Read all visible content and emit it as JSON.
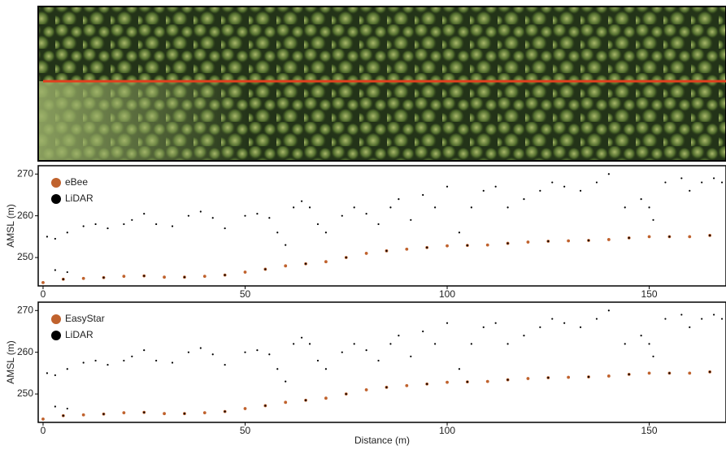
{
  "chart_data": [
    {
      "type": "scatter",
      "ylabel": "AMSL (m)",
      "xlim": [
        -1.2,
        169
      ],
      "ylim": [
        243.2,
        272
      ],
      "xticks": [
        0,
        50,
        100,
        150
      ],
      "yticks": [
        250,
        260,
        270
      ],
      "series": [
        {
          "name": "eBee",
          "color": "#c0622d",
          "x": [
            0,
            5,
            10,
            15,
            20,
            25,
            30,
            35,
            40,
            45,
            50,
            55,
            60,
            65,
            70,
            75,
            80,
            85,
            90,
            95,
            100,
            105,
            110,
            115,
            120,
            125,
            130,
            135,
            140,
            145,
            150,
            155,
            160,
            165
          ],
          "values": [
            244,
            244.8,
            245,
            245.2,
            245.5,
            245.6,
            245.3,
            245.3,
            245.5,
            245.8,
            246.5,
            247.2,
            248,
            248.5,
            249,
            250,
            251,
            251.6,
            252,
            252.4,
            252.8,
            252.9,
            253,
            253.4,
            253.7,
            253.9,
            254,
            254.1,
            254.3,
            254.7,
            255,
            255,
            255,
            255.3
          ]
        },
        {
          "name": "LiDAR",
          "color": "#000000",
          "x": [
            1,
            3,
            6,
            10,
            13,
            16,
            20,
            22,
            25,
            28,
            32,
            36,
            39,
            42,
            45,
            50,
            53,
            56,
            58,
            60,
            62,
            64,
            66,
            68,
            70,
            74,
            77,
            80,
            83,
            86,
            88,
            91,
            94,
            97,
            100,
            103,
            106,
            109,
            112,
            115,
            119,
            123,
            126,
            129,
            133,
            137,
            140,
            144,
            148,
            150,
            151,
            154,
            158,
            160,
            163,
            166,
            168,
            3,
            6,
            5,
            15,
            25,
            35,
            45,
            55,
            65,
            75,
            85,
            95,
            105,
            115,
            125,
            135,
            145,
            155,
            165
          ],
          "values": [
            255,
            254.5,
            256,
            257.5,
            258,
            257,
            258,
            259,
            260.5,
            258,
            257.5,
            260,
            261,
            259.5,
            257,
            260,
            260.5,
            259.5,
            256,
            253,
            262,
            263.5,
            262,
            258,
            256,
            260,
            262,
            260.5,
            258,
            262,
            264,
            259,
            265,
            262,
            267,
            256,
            262,
            266,
            267,
            262,
            264,
            266,
            268,
            267,
            266,
            268,
            270,
            262,
            264,
            262,
            259,
            268,
            269,
            266,
            268,
            269,
            268,
            247,
            246.5,
            244.8,
            245.2,
            245.6,
            245.3,
            245.8,
            247.2,
            248.5,
            250,
            251.6,
            252.4,
            252.9,
            253.4,
            253.9,
            254.1,
            254.7,
            255,
            255.3
          ]
        }
      ]
    },
    {
      "type": "scatter",
      "ylabel": "AMSL (m)",
      "xlabel": "Distance (m)",
      "xlim": [
        -1.2,
        169
      ],
      "ylim": [
        243.2,
        272
      ],
      "xticks": [
        0,
        50,
        100,
        150
      ],
      "yticks": [
        250,
        260,
        270
      ],
      "series": [
        {
          "name": "EasyStar",
          "color": "#c0622d",
          "x": [
            0,
            5,
            10,
            15,
            20,
            25,
            30,
            35,
            40,
            45,
            50,
            55,
            60,
            65,
            70,
            75,
            80,
            85,
            90,
            95,
            100,
            105,
            110,
            115,
            120,
            125,
            130,
            135,
            140,
            145,
            150,
            155,
            160,
            165
          ],
          "values": [
            244,
            244.8,
            245,
            245.2,
            245.5,
            245.6,
            245.3,
            245.3,
            245.5,
            245.8,
            246.5,
            247.2,
            248,
            248.5,
            249,
            250,
            251,
            251.6,
            252,
            252.4,
            252.8,
            252.9,
            253,
            253.4,
            253.7,
            253.9,
            254,
            254.1,
            254.3,
            254.7,
            255,
            255,
            255,
            255.3
          ]
        },
        {
          "name": "LiDAR",
          "color": "#000000",
          "x": [
            1,
            3,
            6,
            10,
            13,
            16,
            20,
            22,
            25,
            28,
            32,
            36,
            39,
            42,
            45,
            50,
            53,
            56,
            58,
            60,
            62,
            64,
            66,
            68,
            70,
            74,
            77,
            80,
            83,
            86,
            88,
            91,
            94,
            97,
            100,
            103,
            106,
            109,
            112,
            115,
            119,
            123,
            126,
            129,
            133,
            137,
            140,
            144,
            148,
            150,
            151,
            154,
            158,
            160,
            163,
            166,
            168,
            3,
            6,
            5,
            15,
            25,
            35,
            45,
            55,
            65,
            75,
            85,
            95,
            105,
            115,
            125,
            135,
            145,
            155,
            165
          ],
          "values": [
            255,
            254.5,
            256,
            257.5,
            258,
            257,
            258,
            259,
            260.5,
            258,
            257.5,
            260,
            261,
            259.5,
            257,
            260,
            260.5,
            259.5,
            256,
            253,
            262,
            263.5,
            262,
            258,
            256,
            260,
            262,
            260.5,
            258,
            262,
            264,
            259,
            265,
            262,
            267,
            256,
            262,
            266,
            267,
            262,
            264,
            266,
            268,
            267,
            266,
            268,
            270,
            262,
            264,
            262,
            259,
            268,
            269,
            266,
            268,
            269,
            268,
            247,
            246.5,
            244.8,
            245.2,
            245.6,
            245.3,
            245.8,
            247.2,
            248.5,
            250,
            251.6,
            252.4,
            252.9,
            253.4,
            253.9,
            254.1,
            254.7,
            255,
            255.3
          ]
        }
      ]
    }
  ]
}
